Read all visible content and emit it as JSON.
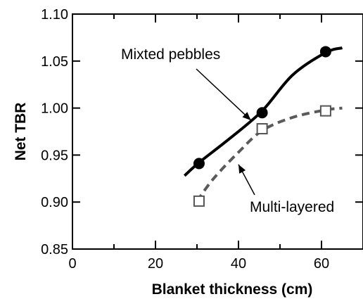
{
  "chart_data": {
    "type": "line",
    "title": "",
    "xlabel": "Blanket thickness (cm)",
    "ylabel": "Net TBR",
    "xlim": [
      0,
      70
    ],
    "ylim": [
      0.85,
      1.1
    ],
    "xticks": [
      "0",
      "20",
      "40",
      "60"
    ],
    "yticks": [
      "0.85",
      "0.90",
      "0.95",
      "1.00",
      "1.05",
      "1.10"
    ],
    "grid": false,
    "legend": "none",
    "series": [
      {
        "name": "Mixted pebbles",
        "marker": "filled-circle",
        "line_style": "solid",
        "color": "#000000",
        "points": [
          [
            30.5,
            0.941
          ],
          [
            45.7,
            0.995
          ],
          [
            61,
            1.06
          ]
        ],
        "curve": [
          [
            27,
            0.928
          ],
          [
            30.5,
            0.942
          ],
          [
            38,
            0.968
          ],
          [
            45.7,
            0.997
          ],
          [
            53,
            1.035
          ],
          [
            61,
            1.059
          ],
          [
            65,
            1.064
          ]
        ]
      },
      {
        "name": "Multi-layered",
        "marker": "open-square",
        "line_style": "dashed",
        "color": "#5a5a5a",
        "points": [
          [
            30.5,
            0.901
          ],
          [
            45.7,
            0.978
          ],
          [
            61,
            0.997
          ]
        ],
        "curve": [
          [
            30,
            0.901
          ],
          [
            34,
            0.925
          ],
          [
            40,
            0.953
          ],
          [
            45.7,
            0.976
          ],
          [
            53,
            0.99
          ],
          [
            61,
            0.998
          ],
          [
            65,
            1.0
          ]
        ]
      }
    ],
    "annotations": [
      {
        "text": "Mixted pebbles",
        "arrow_to": [
          43,
          0.987
        ]
      },
      {
        "text": "Multi-layered",
        "arrow_to": [
          40,
          0.94
        ]
      }
    ]
  }
}
